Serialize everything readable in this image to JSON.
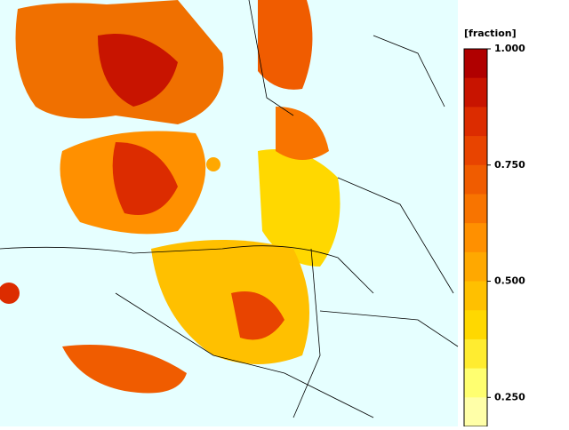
{
  "colorbar": {
    "label": "[fraction]",
    "lim": [
      0.1875,
      1
    ],
    "ticks": [
      {
        "value": 1,
        "label": "1.000"
      },
      {
        "value": 0.75,
        "label": "0.750"
      },
      {
        "value": 0.5,
        "label": "0.500"
      },
      {
        "value": 0.25,
        "label": "0.250"
      }
    ],
    "colors": [
      "#b00000",
      "#c81400",
      "#dc2c00",
      "#e84400",
      "#f05c00",
      "#f87400",
      "#ff9000",
      "#ffa800",
      "#ffc000",
      "#ffd800",
      "#ffec30",
      "#ffff70",
      "#ffffa8"
    ]
  }
}
